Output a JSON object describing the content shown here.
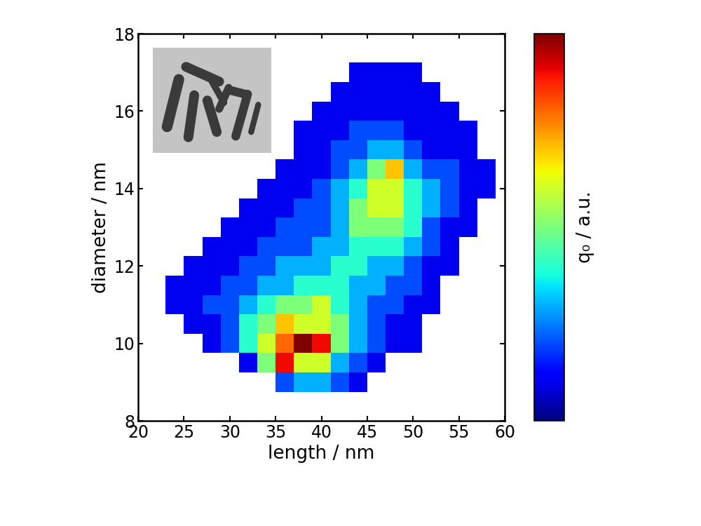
{
  "chart_data": {
    "type": "heatmap",
    "xlabel": "length / nm",
    "ylabel": "diameter / nm",
    "colorbar_label": "q₀ / a.u.",
    "xlim": [
      20,
      60
    ],
    "xticks": [
      20,
      25,
      30,
      35,
      40,
      45,
      50,
      55,
      60
    ],
    "ylim": [
      8,
      18
    ],
    "yticks": [
      8,
      10,
      12,
      14,
      16,
      18
    ],
    "colorbar_range": [
      0,
      1
    ],
    "x": [
      24,
      26,
      28,
      30,
      32,
      34,
      36,
      38,
      40,
      42,
      44,
      46,
      48,
      50,
      52,
      54,
      56,
      58
    ],
    "y": [
      9.0,
      9.5,
      10.0,
      10.5,
      11.0,
      11.5,
      12.0,
      12.5,
      13.0,
      13.5,
      14.0,
      14.5,
      15.0,
      15.5,
      16.0,
      16.5,
      17.0
    ],
    "cells": [
      [
        null,
        null,
        null,
        null,
        null,
        null,
        0.2,
        0.3,
        0.3,
        0.2,
        0.1,
        null,
        null,
        null,
        null,
        null,
        null,
        null
      ],
      [
        null,
        null,
        null,
        null,
        0.1,
        0.5,
        0.9,
        0.6,
        0.6,
        0.3,
        0.2,
        0.1,
        null,
        null,
        null,
        null,
        null,
        null
      ],
      [
        null,
        null,
        0.1,
        0.2,
        0.4,
        0.6,
        0.8,
        1.0,
        0.9,
        0.5,
        0.3,
        0.2,
        0.1,
        0.1,
        null,
        null,
        null,
        null
      ],
      [
        null,
        0.1,
        0.1,
        0.2,
        0.4,
        0.5,
        0.7,
        0.6,
        0.6,
        0.5,
        0.3,
        0.2,
        0.1,
        0.1,
        null,
        null,
        null,
        null
      ],
      [
        0.1,
        0.1,
        0.2,
        0.2,
        0.3,
        0.4,
        0.5,
        0.5,
        0.6,
        0.4,
        0.3,
        0.2,
        0.2,
        0.1,
        0.1,
        null,
        null,
        null
      ],
      [
        0.1,
        0.1,
        0.1,
        0.2,
        0.2,
        0.3,
        0.3,
        0.4,
        0.4,
        0.4,
        0.3,
        0.3,
        0.2,
        0.2,
        0.1,
        null,
        null,
        null
      ],
      [
        null,
        0.1,
        0.1,
        0.1,
        0.2,
        0.2,
        0.3,
        0.3,
        0.3,
        0.4,
        0.4,
        0.3,
        0.3,
        0.2,
        0.1,
        0.1,
        null,
        null
      ],
      [
        null,
        null,
        0.1,
        0.1,
        0.1,
        0.2,
        0.2,
        0.2,
        0.3,
        0.3,
        0.4,
        0.4,
        0.4,
        0.3,
        0.2,
        0.1,
        null,
        null
      ],
      [
        null,
        null,
        null,
        0.1,
        0.1,
        0.1,
        0.2,
        0.2,
        0.2,
        0.3,
        0.5,
        0.5,
        0.5,
        0.4,
        0.2,
        0.1,
        0.1,
        null
      ],
      [
        null,
        null,
        null,
        null,
        0.1,
        0.1,
        0.1,
        0.2,
        0.2,
        0.3,
        0.5,
        0.6,
        0.6,
        0.4,
        0.3,
        0.2,
        0.1,
        null
      ],
      [
        null,
        null,
        null,
        null,
        null,
        0.1,
        0.1,
        0.1,
        0.2,
        0.3,
        0.4,
        0.6,
        0.6,
        0.4,
        0.3,
        0.2,
        0.1,
        0.1
      ],
      [
        null,
        null,
        null,
        null,
        null,
        null,
        0.1,
        0.1,
        0.1,
        0.2,
        0.3,
        0.5,
        0.7,
        0.3,
        0.2,
        0.2,
        0.1,
        0.1
      ],
      [
        null,
        null,
        null,
        null,
        null,
        null,
        null,
        0.1,
        0.1,
        0.2,
        0.2,
        0.3,
        0.3,
        0.2,
        0.1,
        0.1,
        0.1,
        null
      ],
      [
        null,
        null,
        null,
        null,
        null,
        null,
        null,
        0.1,
        0.1,
        0.1,
        0.2,
        0.2,
        0.2,
        0.1,
        0.1,
        0.1,
        0.1,
        null
      ],
      [
        null,
        null,
        null,
        null,
        null,
        null,
        null,
        null,
        0.1,
        0.1,
        0.1,
        0.1,
        0.1,
        0.1,
        0.1,
        0.1,
        null,
        null
      ],
      [
        null,
        null,
        null,
        null,
        null,
        null,
        null,
        null,
        null,
        0.1,
        0.1,
        0.1,
        0.1,
        0.1,
        0.1,
        null,
        null,
        null
      ],
      [
        null,
        null,
        null,
        null,
        null,
        null,
        null,
        null,
        null,
        null,
        0.1,
        0.1,
        0.1,
        0.1,
        null,
        null,
        null,
        null
      ]
    ]
  }
}
